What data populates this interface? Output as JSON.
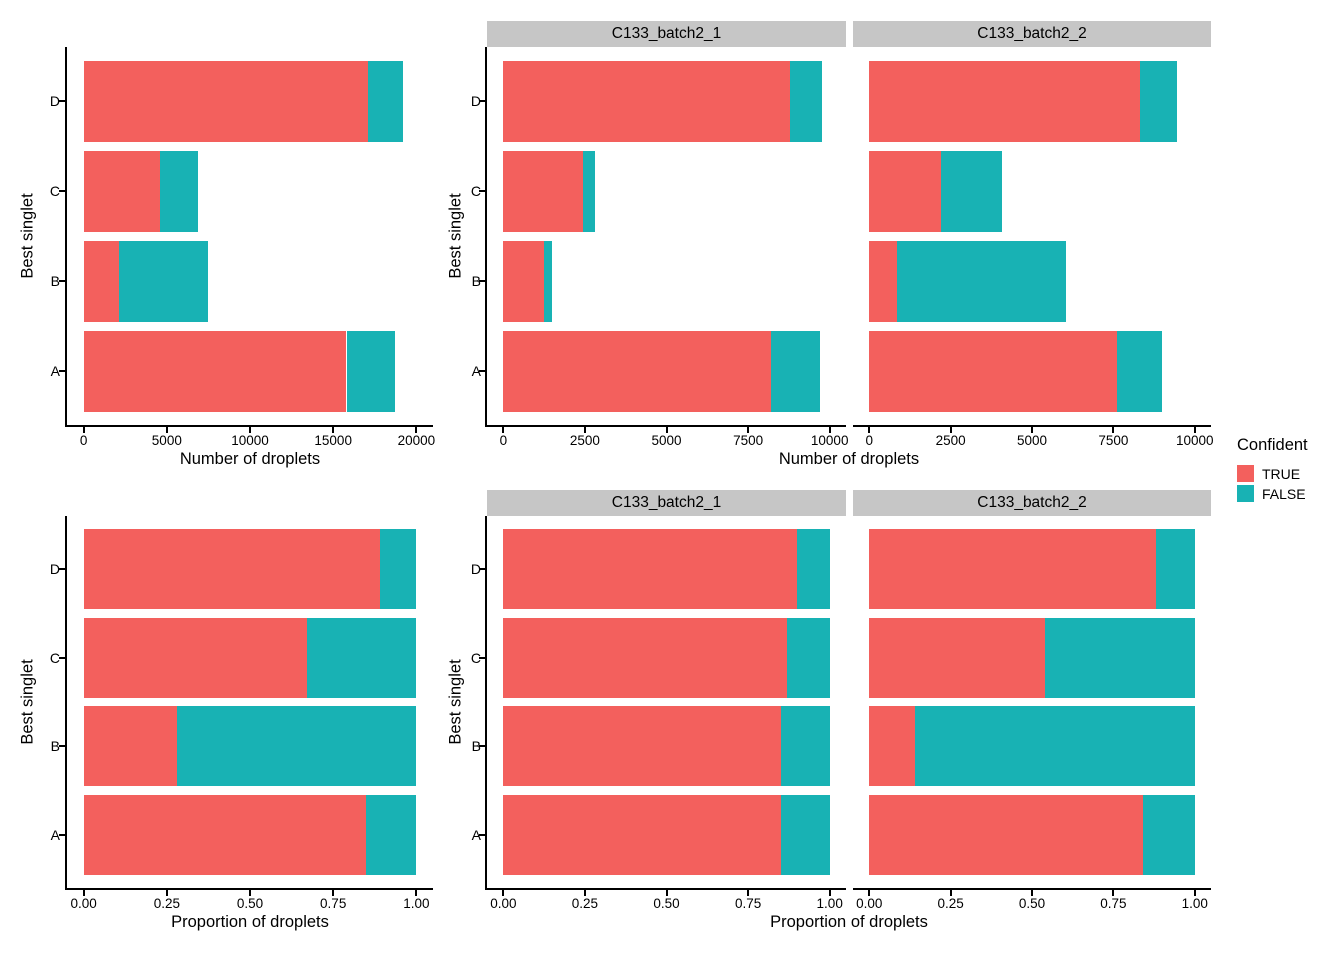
{
  "figure": {
    "background": "#FFFFFF",
    "strip_color": "#C6C6C6",
    "axis_color": "#000000",
    "legend": {
      "title": "Confident",
      "entries": [
        {
          "label": "TRUE",
          "color": "#F3605D"
        },
        {
          "label": "FALSE",
          "color": "#18B2B4"
        }
      ]
    }
  },
  "chart_data": [
    {
      "id": "counts-combined",
      "type": "bar",
      "stacked": true,
      "orientation": "horizontal",
      "grid": false,
      "xlabel": "Number of droplets",
      "ylabel": "Best singlet",
      "categories": [
        "A",
        "B",
        "C",
        "D"
      ],
      "xlim": [
        0,
        20000
      ],
      "xtick_values": [
        0,
        5000,
        10000,
        15000,
        20000
      ],
      "xtick_labels": [
        "0",
        "5000",
        "10000",
        "15000",
        "20000"
      ],
      "panels": [
        {
          "facet": null,
          "series": [
            {
              "name": "TRUE",
              "values": [
                15800,
                2100,
                4600,
                17100
              ]
            },
            {
              "name": "FALSE",
              "values": [
                2900,
                5400,
                2250,
                2100
              ]
            }
          ]
        }
      ]
    },
    {
      "id": "counts-by-sample",
      "type": "bar",
      "stacked": true,
      "orientation": "horizontal",
      "grid": false,
      "xlabel": "Number of droplets",
      "ylabel": "Best singlet",
      "categories": [
        "A",
        "B",
        "C",
        "D"
      ],
      "xlim": [
        0,
        10000
      ],
      "xtick_values": [
        0,
        2500,
        5000,
        7500,
        10000
      ],
      "xtick_labels": [
        "0",
        "2500",
        "5000",
        "7500",
        "10000"
      ],
      "panels": [
        {
          "facet": "C133_batch2_1",
          "series": [
            {
              "name": "TRUE",
              "values": [
                8200,
                1260,
                2430,
                8770
              ]
            },
            {
              "name": "FALSE",
              "values": [
                1500,
                240,
                380,
                990
              ]
            }
          ]
        },
        {
          "facet": "C133_batch2_2",
          "series": [
            {
              "name": "TRUE",
              "values": [
                7600,
                850,
                2210,
                8330
              ]
            },
            {
              "name": "FALSE",
              "values": [
                1400,
                5180,
                1860,
                1120
              ]
            }
          ]
        }
      ]
    },
    {
      "id": "proportions-combined",
      "type": "bar",
      "stacked": true,
      "orientation": "horizontal",
      "grid": false,
      "xlabel": "Proportion of droplets",
      "ylabel": "Best singlet",
      "categories": [
        "A",
        "B",
        "C",
        "D"
      ],
      "xlim": [
        0,
        1
      ],
      "xtick_values": [
        0,
        0.25,
        0.5,
        0.75,
        1
      ],
      "xtick_labels": [
        "0.00",
        "0.25",
        "0.50",
        "0.75",
        "1.00"
      ],
      "panels": [
        {
          "facet": null,
          "series": [
            {
              "name": "TRUE",
              "values": [
                0.85,
                0.28,
                0.67,
                0.89
              ]
            },
            {
              "name": "FALSE",
              "values": [
                0.15,
                0.72,
                0.33,
                0.11
              ]
            }
          ]
        }
      ]
    },
    {
      "id": "proportions-by-sample",
      "type": "bar",
      "stacked": true,
      "orientation": "horizontal",
      "grid": false,
      "xlabel": "Proportion of droplets",
      "ylabel": "Best singlet",
      "categories": [
        "A",
        "B",
        "C",
        "D"
      ],
      "xlim": [
        0,
        1
      ],
      "xtick_values": [
        0,
        0.25,
        0.5,
        0.75,
        1
      ],
      "xtick_labels": [
        "0.00",
        "0.25",
        "0.50",
        "0.75",
        "1.00"
      ],
      "panels": [
        {
          "facet": "C133_batch2_1",
          "series": [
            {
              "name": "TRUE",
              "values": [
                0.85,
                0.85,
                0.87,
                0.9
              ]
            },
            {
              "name": "FALSE",
              "values": [
                0.15,
                0.15,
                0.13,
                0.1
              ]
            }
          ]
        },
        {
          "facet": "C133_batch2_2",
          "series": [
            {
              "name": "TRUE",
              "values": [
                0.84,
                0.14,
                0.54,
                0.88
              ]
            },
            {
              "name": "FALSE",
              "values": [
                0.16,
                0.86,
                0.46,
                0.12
              ]
            }
          ]
        }
      ]
    }
  ]
}
